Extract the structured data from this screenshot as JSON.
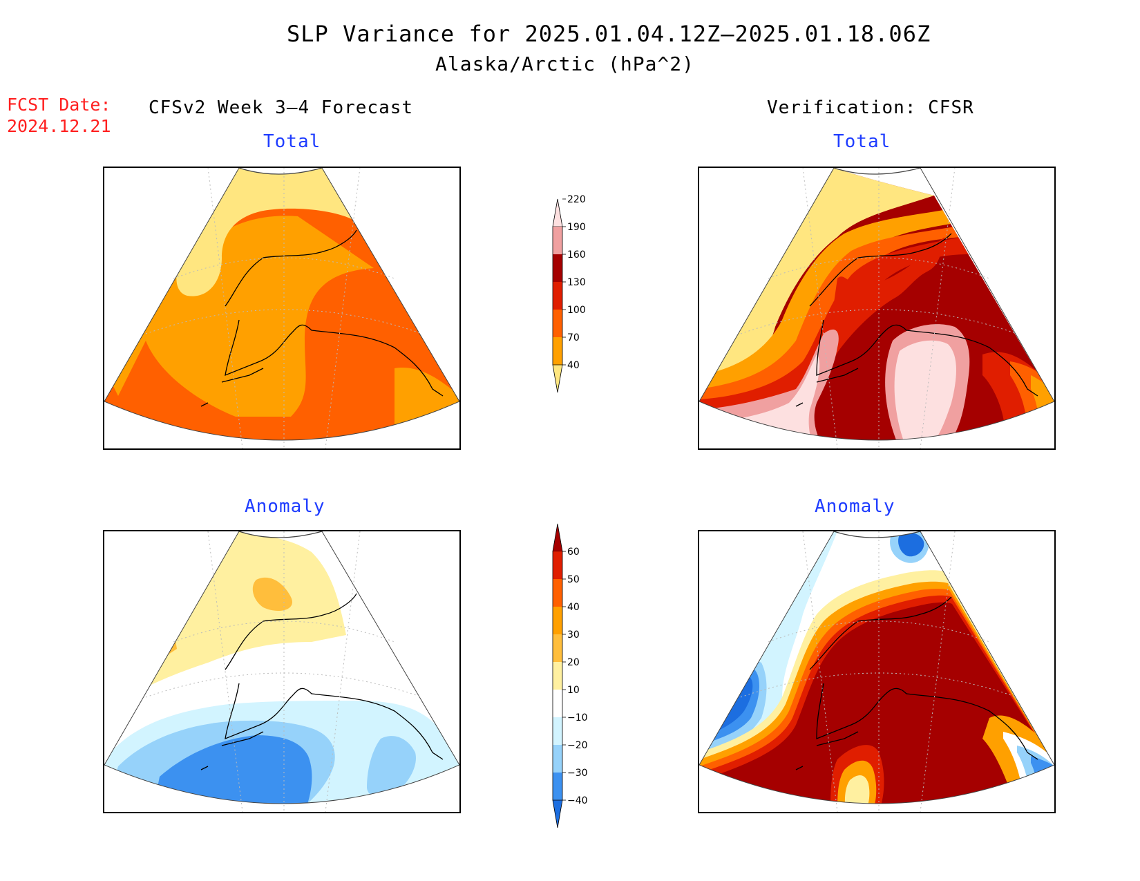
{
  "header": {
    "title": "SLP Variance for 2025.01.04.12Z–2025.01.18.06Z",
    "subtitle": "Alaska/Arctic (hPa^2)"
  },
  "forecast_date": {
    "label": "FCST Date:",
    "value": "2024.12.21"
  },
  "columns": {
    "left": "CFSv2 Week 3–4 Forecast",
    "right": "Verification: CFSR"
  },
  "panels": {
    "forecast_total": "Total",
    "forecast_anomaly": "Anomaly",
    "verification_total": "Total",
    "verification_anomaly": "Anomaly"
  },
  "colorbars": {
    "total": {
      "levels": [
        "40",
        "70",
        "100",
        "130",
        "160",
        "190",
        "220"
      ],
      "colors": [
        "#ffe680",
        "#ffa000",
        "#ff6000",
        "#e01e00",
        "#a50000",
        "#f0a0a0",
        "#fde0e0"
      ]
    },
    "anomaly": {
      "levels": [
        "−40",
        "−30",
        "−20",
        "−10",
        "10",
        "20",
        "30",
        "40",
        "50",
        "60"
      ],
      "colors": [
        "#1c6ee0",
        "#3c91f0",
        "#96d2fa",
        "#d2f4ff",
        "#ffffff",
        "#fff0a0",
        "#ffbe3c",
        "#ffa000",
        "#ff6000",
        "#e01e00",
        "#a50000"
      ]
    }
  },
  "chart_data": {
    "type": "heatmap",
    "title": "SLP Variance for 2025.01.04.12Z–2025.01.18.06Z",
    "units": "hPa^2",
    "region": "Alaska/Arctic",
    "panels": [
      "CFSv2 Week 3–4 Forecast Total",
      "CFSv2 Week 3–4 Forecast Anomaly",
      "Verification: CFSR Total",
      "Verification: CFSR Anomaly"
    ]
  }
}
